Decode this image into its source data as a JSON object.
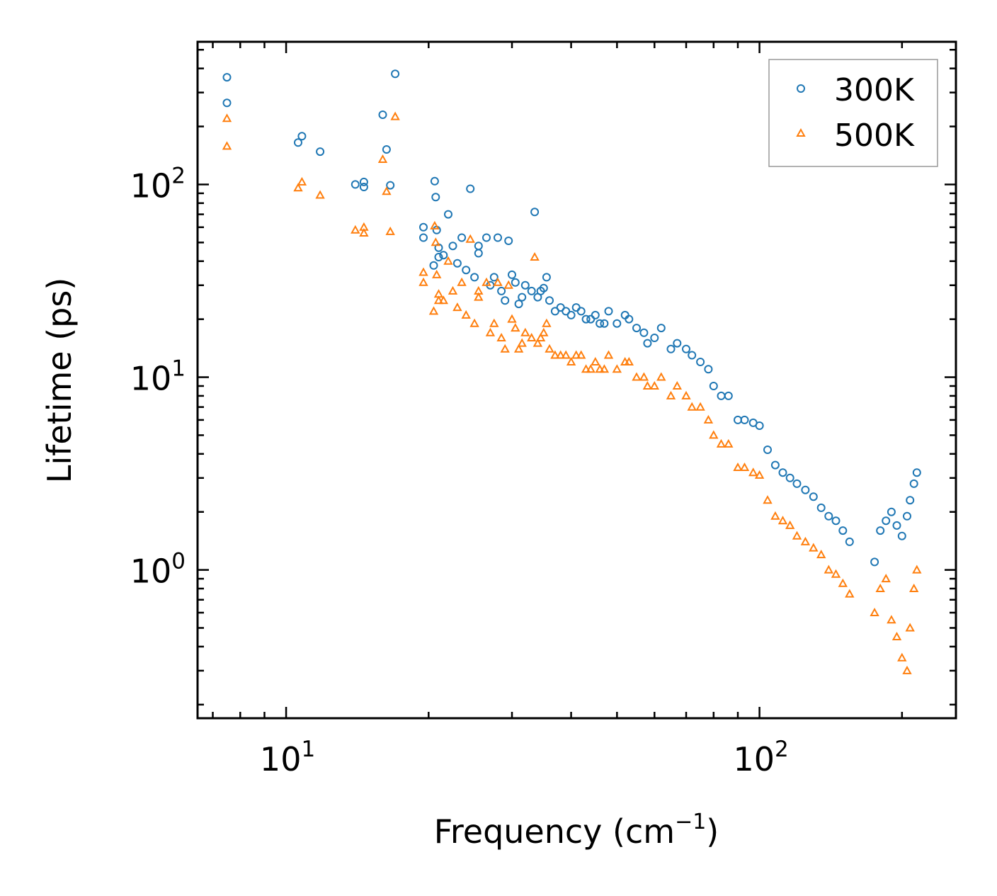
{
  "chart_data": {
    "type": "scatter",
    "xscale": "log",
    "yscale": "log",
    "xlim": [
      6.5,
      260
    ],
    "ylim": [
      0.17,
      550
    ],
    "xlabel_main": "Frequency (cm",
    "xlabel_exp": "−1",
    "xlabel_close": ")",
    "ylabel": "Lifetime (ps)",
    "x_ticks": [
      {
        "value": 10,
        "base": "10",
        "exp": "1"
      },
      {
        "value": 100,
        "base": "10",
        "exp": "2"
      }
    ],
    "y_ticks": [
      {
        "value": 1,
        "base": "10",
        "exp": "0"
      },
      {
        "value": 10,
        "base": "10",
        "exp": "1"
      },
      {
        "value": 100,
        "base": "10",
        "exp": "2"
      }
    ],
    "legend_position": "top-right",
    "series": [
      {
        "name": "300K",
        "marker": "circle",
        "color": "#1f77b4",
        "x": [
          7.5,
          7.5,
          10.6,
          10.8,
          11.8,
          14.0,
          14.6,
          14.6,
          16.0,
          16.3,
          16.6,
          17.0,
          19.5,
          19.5,
          20.5,
          20.6,
          20.7,
          20.8,
          21.0,
          21.0,
          21.5,
          22.0,
          22.5,
          23.0,
          23.5,
          24.0,
          24.5,
          25.0,
          25.5,
          25.5,
          26.5,
          27.0,
          27.5,
          28.0,
          28.5,
          29.0,
          29.5,
          30.0,
          30.5,
          31.0,
          31.5,
          32.0,
          33.0,
          33.5,
          34.0,
          34.5,
          35.0,
          35.5,
          36.0,
          37.0,
          38.0,
          39.0,
          40.0,
          41.0,
          42.0,
          43.0,
          44.0,
          45.0,
          46.0,
          47.0,
          48.0,
          50.0,
          52.0,
          53.0,
          55.0,
          57.0,
          58.0,
          60.0,
          62.0,
          65.0,
          67.0,
          70.0,
          72.0,
          75.0,
          78.0,
          80.0,
          83.0,
          86.0,
          90.0,
          93.0,
          97.0,
          100.0,
          104.0,
          108.0,
          112.0,
          116.0,
          120.0,
          125.0,
          130.0,
          135.0,
          140.0,
          145.0,
          150.0,
          155.0,
          175.0,
          180.0,
          185.0,
          190.0,
          195.0,
          200.0,
          205.0,
          208.0,
          212.0,
          215.0
        ],
        "y": [
          360,
          265,
          165,
          178,
          148,
          100,
          103,
          97,
          230,
          152,
          99,
          375,
          60,
          53,
          38,
          104,
          86,
          58,
          47,
          42,
          43,
          70,
          48,
          39,
          53,
          36,
          95,
          33,
          48,
          44,
          53,
          30,
          33,
          53,
          28,
          25,
          51,
          34,
          31,
          24,
          26,
          30,
          28,
          72,
          26,
          28,
          29,
          33,
          25,
          22,
          23,
          22,
          21,
          23,
          22,
          20,
          20,
          21,
          19,
          19,
          22,
          19,
          21,
          20,
          18,
          17,
          15,
          16,
          18,
          14,
          15,
          14,
          13,
          12,
          11,
          9,
          8,
          8,
          6,
          6,
          5.8,
          5.6,
          4.2,
          3.5,
          3.2,
          3.0,
          2.8,
          2.6,
          2.4,
          2.1,
          1.9,
          1.8,
          1.6,
          1.4,
          1.1,
          1.6,
          1.8,
          2.0,
          1.7,
          1.5,
          1.9,
          2.3,
          2.8,
          3.2
        ]
      },
      {
        "name": "500K",
        "marker": "triangle",
        "color": "#ff7f0e",
        "x": [
          7.5,
          7.5,
          10.6,
          10.8,
          11.8,
          14.0,
          14.6,
          14.6,
          16.0,
          16.3,
          16.6,
          17.0,
          19.5,
          19.5,
          20.5,
          20.6,
          20.7,
          20.8,
          21.0,
          21.0,
          21.5,
          22.0,
          22.5,
          23.0,
          23.5,
          24.0,
          24.5,
          25.0,
          25.5,
          25.5,
          26.5,
          27.0,
          27.5,
          28.0,
          28.5,
          29.0,
          29.5,
          30.0,
          30.5,
          31.0,
          31.5,
          32.0,
          33.0,
          33.5,
          34.0,
          34.5,
          35.0,
          35.5,
          36.0,
          37.0,
          38.0,
          39.0,
          40.0,
          41.0,
          42.0,
          43.0,
          44.0,
          45.0,
          46.0,
          47.0,
          48.0,
          50.0,
          52.0,
          53.0,
          55.0,
          57.0,
          58.0,
          60.0,
          62.0,
          65.0,
          67.0,
          70.0,
          72.0,
          75.0,
          78.0,
          80.0,
          83.0,
          86.0,
          90.0,
          93.0,
          97.0,
          100.0,
          104.0,
          108.0,
          112.0,
          116.0,
          120.0,
          125.0,
          130.0,
          135.0,
          140.0,
          145.0,
          150.0,
          155.0,
          175.0,
          180.0,
          185.0,
          190.0,
          195.0,
          200.0,
          205.0,
          208.0,
          212.0,
          215.0
        ],
        "y": [
          220,
          158,
          96,
          103,
          88,
          58,
          60,
          56,
          135,
          92,
          57,
          225,
          35,
          31,
          22,
          61,
          50,
          34,
          27,
          25,
          25,
          40,
          28,
          23,
          31,
          21,
          52,
          19,
          28,
          26,
          31,
          17,
          19,
          31,
          16,
          14,
          30,
          20,
          18,
          14,
          15,
          17,
          16,
          42,
          15,
          16,
          17,
          19,
          14,
          13,
          13,
          13,
          12,
          13,
          13,
          11,
          11,
          12,
          11,
          11,
          13,
          11,
          12,
          12,
          10,
          10,
          9,
          9,
          10,
          8,
          9,
          8,
          7,
          7,
          6,
          5,
          4.5,
          4.5,
          3.4,
          3.4,
          3.2,
          3.1,
          2.3,
          1.9,
          1.8,
          1.7,
          1.5,
          1.4,
          1.3,
          1.2,
          1.0,
          0.95,
          0.85,
          0.75,
          0.6,
          0.8,
          0.9,
          0.55,
          0.45,
          0.35,
          0.3,
          0.5,
          0.8,
          1.0
        ]
      }
    ]
  }
}
